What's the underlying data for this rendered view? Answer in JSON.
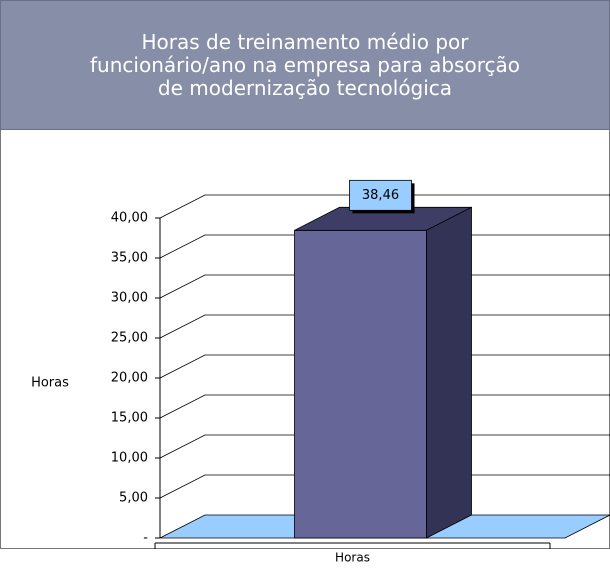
{
  "chart_data": {
    "type": "bar3d",
    "title": "Horas de treinamento médio por funcionário/ano na empresa para absorção de modernização tecnológica",
    "ylabel": "Horas",
    "categories": [
      "Horas"
    ],
    "values": [
      38.46
    ],
    "value_labels": [
      "38,46"
    ],
    "color": "#666699",
    "ylim": [
      0,
      40
    ],
    "yticks": [
      {
        "value": 0,
        "label": "-"
      },
      {
        "value": 5,
        "label": "5,00"
      },
      {
        "value": 10,
        "label": "10,00"
      },
      {
        "value": 15,
        "label": "15,00"
      },
      {
        "value": 20,
        "label": "20,00"
      },
      {
        "value": 25,
        "label": "25,00"
      },
      {
        "value": 30,
        "label": "30,00"
      },
      {
        "value": 35,
        "label": "35,00"
      },
      {
        "value": 40,
        "label": "40,00"
      }
    ],
    "grid": true
  }
}
